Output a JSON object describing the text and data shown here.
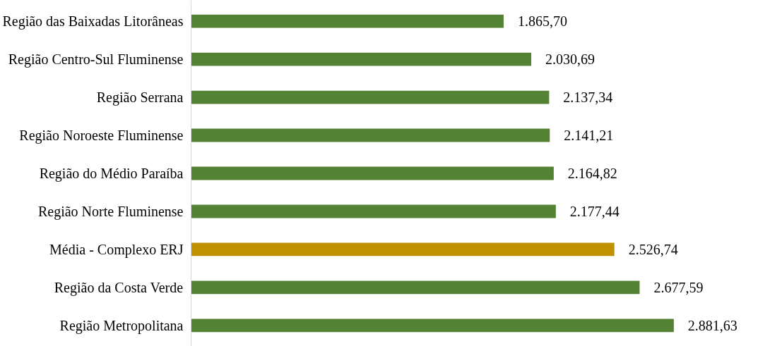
{
  "chart_data": {
    "type": "bar",
    "orientation": "horizontal",
    "categories": [
      "Região das Baixadas Litorâneas",
      "Região Centro-Sul Fluminense",
      "Região Serrana",
      "Região Noroeste Fluminense",
      "Região do Médio Paraíba",
      "Região Norte Fluminense",
      "Média - Complexo ERJ",
      "Região da Costa Verde",
      "Região Metropolitana"
    ],
    "values": [
      1865.7,
      2030.69,
      2137.34,
      2141.21,
      2164.82,
      2177.44,
      2526.74,
      2677.59,
      2881.63
    ],
    "value_labels": [
      "1.865,70",
      "2.030,69",
      "2.137,34",
      "2.141,21",
      "2.164,82",
      "2.177,44",
      "2.526,74",
      "2.677,59",
      "2.881,63"
    ],
    "colors": [
      "#548235",
      "#548235",
      "#548235",
      "#548235",
      "#548235",
      "#548235",
      "#bf9000",
      "#548235",
      "#548235"
    ],
    "grid": false
  }
}
